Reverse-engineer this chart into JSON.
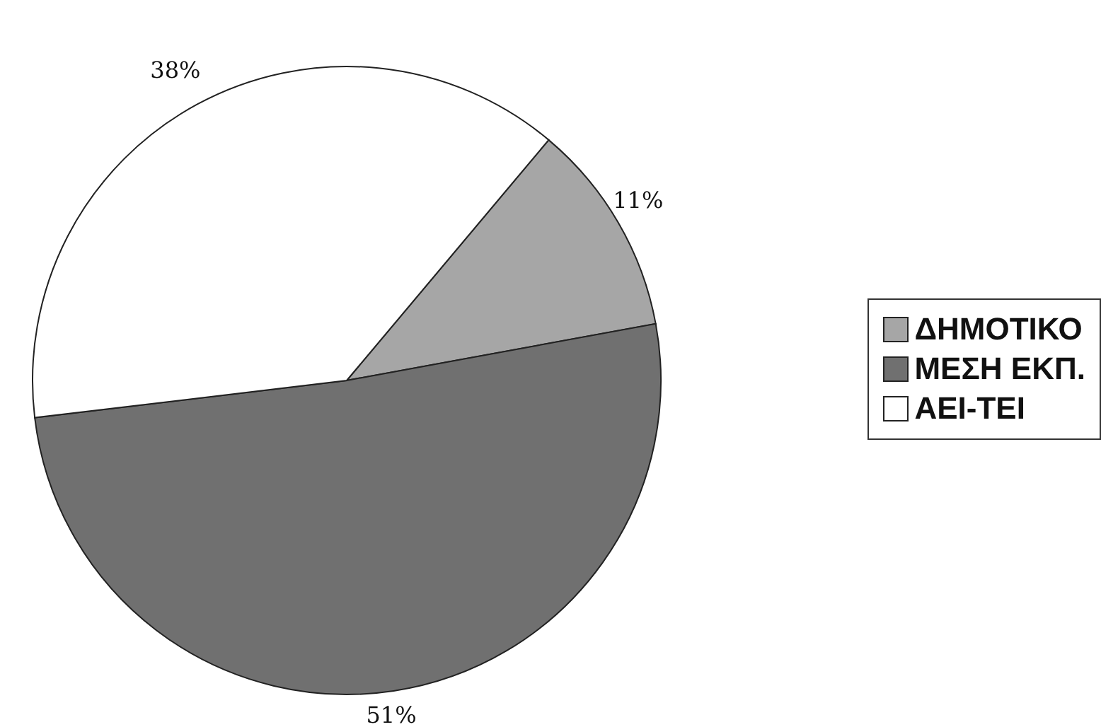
{
  "chart_data": {
    "type": "pie",
    "categories": [
      "ΔΗΜΟΤΙΚΟ",
      "ΜΕΣΗ ΕΚΠ.",
      "ΑΕΙ-ΤΕΙ"
    ],
    "values": [
      11,
      51,
      38
    ],
    "colors": [
      "#a6a6a6",
      "#707070",
      "#ffffff"
    ],
    "value_labels": [
      "11%",
      "51%",
      "38%"
    ],
    "legend": "right"
  }
}
